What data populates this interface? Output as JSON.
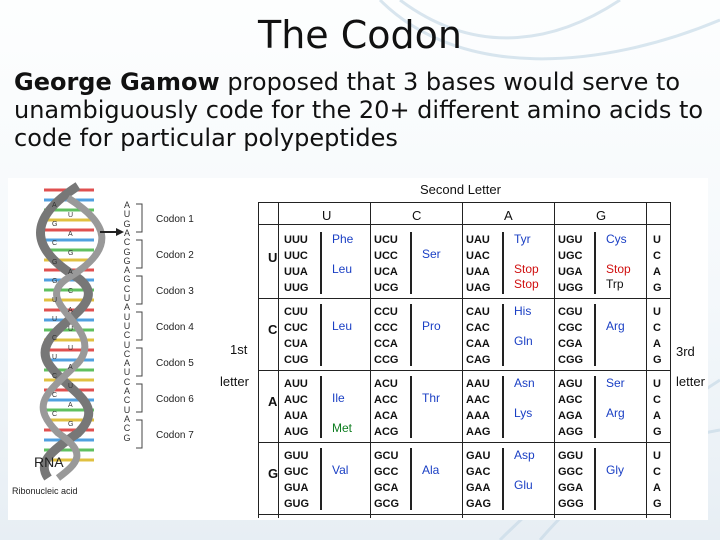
{
  "slide": {
    "title": "The Codon",
    "body_bold": "George Gamow",
    "body_rest": " proposed that 3 bases would serve to unambiguously code for the 20+ different amino acids to code for particular polypeptides"
  },
  "figure": {
    "rna_label": "RNA",
    "ribonucleic_label": "Ribonucleic acid",
    "codon_labels": [
      "Codon 1",
      "Codon 2",
      "Codon 3",
      "Codon 4",
      "Codon 5",
      "Codon 6",
      "Codon 7"
    ],
    "strand_bases": [
      "A",
      "U",
      "G",
      "A",
      "C",
      "G",
      "G",
      "A",
      "G",
      "C",
      "U",
      "A",
      "U",
      "U",
      "C",
      "U",
      "C",
      "A",
      "U",
      "C",
      "A",
      "C",
      "U",
      "A",
      "C",
      "G"
    ],
    "side_bases": [
      "A",
      "U",
      "G",
      "A",
      "C",
      "G",
      "G",
      "A",
      "G",
      "C",
      "U",
      "A",
      "U",
      "U",
      "C",
      "U",
      "U",
      "A",
      "C",
      "U",
      "C",
      "A",
      "C",
      "G"
    ]
  },
  "table": {
    "second_letter": "Second Letter",
    "col_headers": [
      "U",
      "C",
      "A",
      "G"
    ],
    "first_letter_label_a": "1st",
    "first_letter_label_b": "letter",
    "third_letter_label_a": "3rd",
    "third_letter_label_b": "letter",
    "rows": [
      {
        "first": "U",
        "third": [
          "U",
          "C",
          "A",
          "G"
        ],
        "cells": [
          {
            "codons": [
              "UUU",
              "UUC",
              "UUA",
              "UUG"
            ],
            "aas": [
              {
                "text": "Phe",
                "color": "blue",
                "pos": 0
              },
              {
                "text": "Leu",
                "color": "blue",
                "pos": 2
              }
            ]
          },
          {
            "codons": [
              "UCU",
              "UCC",
              "UCA",
              "UCG"
            ],
            "aas": [
              {
                "text": "Ser",
                "color": "blue",
                "pos": 1
              }
            ]
          },
          {
            "codons": [
              "UAU",
              "UAC",
              "UAA",
              "UAG"
            ],
            "aas": [
              {
                "text": "Tyr",
                "color": "blue",
                "pos": 0
              },
              {
                "text": "Stop",
                "color": "red",
                "pos": 2
              },
              {
                "text": "Stop",
                "color": "red",
                "pos": 3
              }
            ]
          },
          {
            "codons": [
              "UGU",
              "UGC",
              "UGA",
              "UGG"
            ],
            "aas": [
              {
                "text": "Cys",
                "color": "blue",
                "pos": 0
              },
              {
                "text": "Stop",
                "color": "red",
                "pos": 2
              },
              {
                "text": "Trp",
                "color": "dark",
                "pos": 3
              }
            ]
          }
        ]
      },
      {
        "first": "C",
        "third": [
          "U",
          "C",
          "A",
          "G"
        ],
        "cells": [
          {
            "codons": [
              "CUU",
              "CUC",
              "CUA",
              "CUG"
            ],
            "aas": [
              {
                "text": "Leu",
                "color": "blue",
                "pos": 1
              }
            ]
          },
          {
            "codons": [
              "CCU",
              "CCC",
              "CCA",
              "CCG"
            ],
            "aas": [
              {
                "text": "Pro",
                "color": "blue",
                "pos": 1
              }
            ]
          },
          {
            "codons": [
              "CAU",
              "CAC",
              "CAA",
              "CAG"
            ],
            "aas": [
              {
                "text": "His",
                "color": "blue",
                "pos": 0
              },
              {
                "text": "Gln",
                "color": "blue",
                "pos": 2
              }
            ]
          },
          {
            "codons": [
              "CGU",
              "CGC",
              "CGA",
              "CGG"
            ],
            "aas": [
              {
                "text": "Arg",
                "color": "blue",
                "pos": 1
              }
            ]
          }
        ]
      },
      {
        "first": "A",
        "third": [
          "U",
          "C",
          "A",
          "G"
        ],
        "cells": [
          {
            "codons": [
              "AUU",
              "AUC",
              "AUA",
              "AUG"
            ],
            "aas": [
              {
                "text": "Ile",
                "color": "blue",
                "pos": 1
              },
              {
                "text": "Met",
                "color": "green",
                "pos": 3
              }
            ]
          },
          {
            "codons": [
              "ACU",
              "ACC",
              "ACA",
              "ACG"
            ],
            "aas": [
              {
                "text": "Thr",
                "color": "blue",
                "pos": 1
              }
            ]
          },
          {
            "codons": [
              "AAU",
              "AAC",
              "AAA",
              "AAG"
            ],
            "aas": [
              {
                "text": "Asn",
                "color": "blue",
                "pos": 0
              },
              {
                "text": "Lys",
                "color": "blue",
                "pos": 2
              }
            ]
          },
          {
            "codons": [
              "AGU",
              "AGC",
              "AGA",
              "AGG"
            ],
            "aas": [
              {
                "text": "Ser",
                "color": "blue",
                "pos": 0
              },
              {
                "text": "Arg",
                "color": "blue",
                "pos": 2
              }
            ]
          }
        ]
      },
      {
        "first": "G",
        "third": [
          "U",
          "C",
          "A",
          "G"
        ],
        "cells": [
          {
            "codons": [
              "GUU",
              "GUC",
              "GUA",
              "GUG"
            ],
            "aas": [
              {
                "text": "Val",
                "color": "blue",
                "pos": 1
              }
            ]
          },
          {
            "codons": [
              "GCU",
              "GCC",
              "GCA",
              "GCG"
            ],
            "aas": [
              {
                "text": "Ala",
                "color": "blue",
                "pos": 1
              }
            ]
          },
          {
            "codons": [
              "GAU",
              "GAC",
              "GAA",
              "GAG"
            ],
            "aas": [
              {
                "text": "Asp",
                "color": "blue",
                "pos": 0
              },
              {
                "text": "Glu",
                "color": "blue",
                "pos": 2
              }
            ]
          },
          {
            "codons": [
              "GGU",
              "GGC",
              "GGA",
              "GGG"
            ],
            "aas": [
              {
                "text": "Gly",
                "color": "blue",
                "pos": 1
              }
            ]
          }
        ]
      }
    ]
  }
}
